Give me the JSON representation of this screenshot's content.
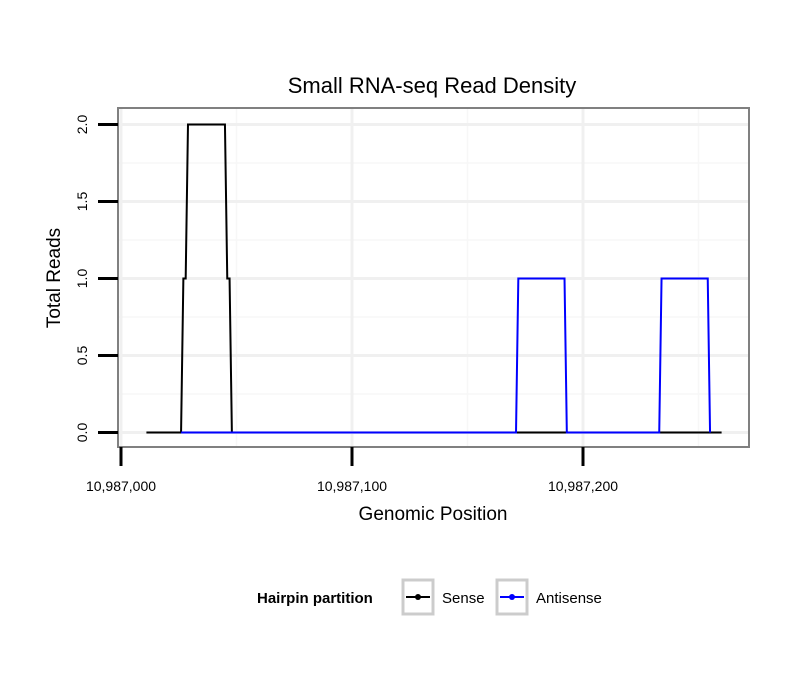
{
  "chart_data": {
    "type": "line",
    "title": "Small RNA-seq Read Density",
    "xlabel": "Genomic Position",
    "ylabel": "Total Reads",
    "xlim": [
      10986999,
      10987273
    ],
    "ylim": [
      -0.08,
      2.05
    ],
    "x_ticks": [
      10987000,
      10987100,
      10987200
    ],
    "x_tick_labels": [
      "10,987,000",
      "10,987,100",
      "10,987,200"
    ],
    "y_ticks": [
      0,
      0.5,
      1,
      1.5,
      2
    ],
    "y_tick_labels": [
      "0.0",
      "0.5",
      "1.0",
      "1.5",
      "2.0"
    ],
    "grid": true,
    "legend": {
      "title": "Hairpin partition",
      "position": "bottom"
    },
    "series": [
      {
        "name": "Sense",
        "color": "#000000",
        "x": [
          10987011,
          10987026,
          10987027,
          10987028,
          10987029,
          10987045,
          10987046,
          10987047,
          10987048,
          10987260
        ],
        "y": [
          0,
          0,
          1,
          1,
          2,
          2,
          1,
          1,
          0,
          0
        ]
      },
      {
        "name": "Antisense",
        "color": "#0000ff",
        "x": [
          10987026,
          10987048,
          10987171,
          10987172,
          10987192,
          10987193,
          10987233,
          10987234,
          10987254,
          10987255
        ],
        "y": [
          0,
          0,
          0,
          1,
          1,
          0,
          0,
          1,
          1,
          0
        ]
      }
    ]
  }
}
